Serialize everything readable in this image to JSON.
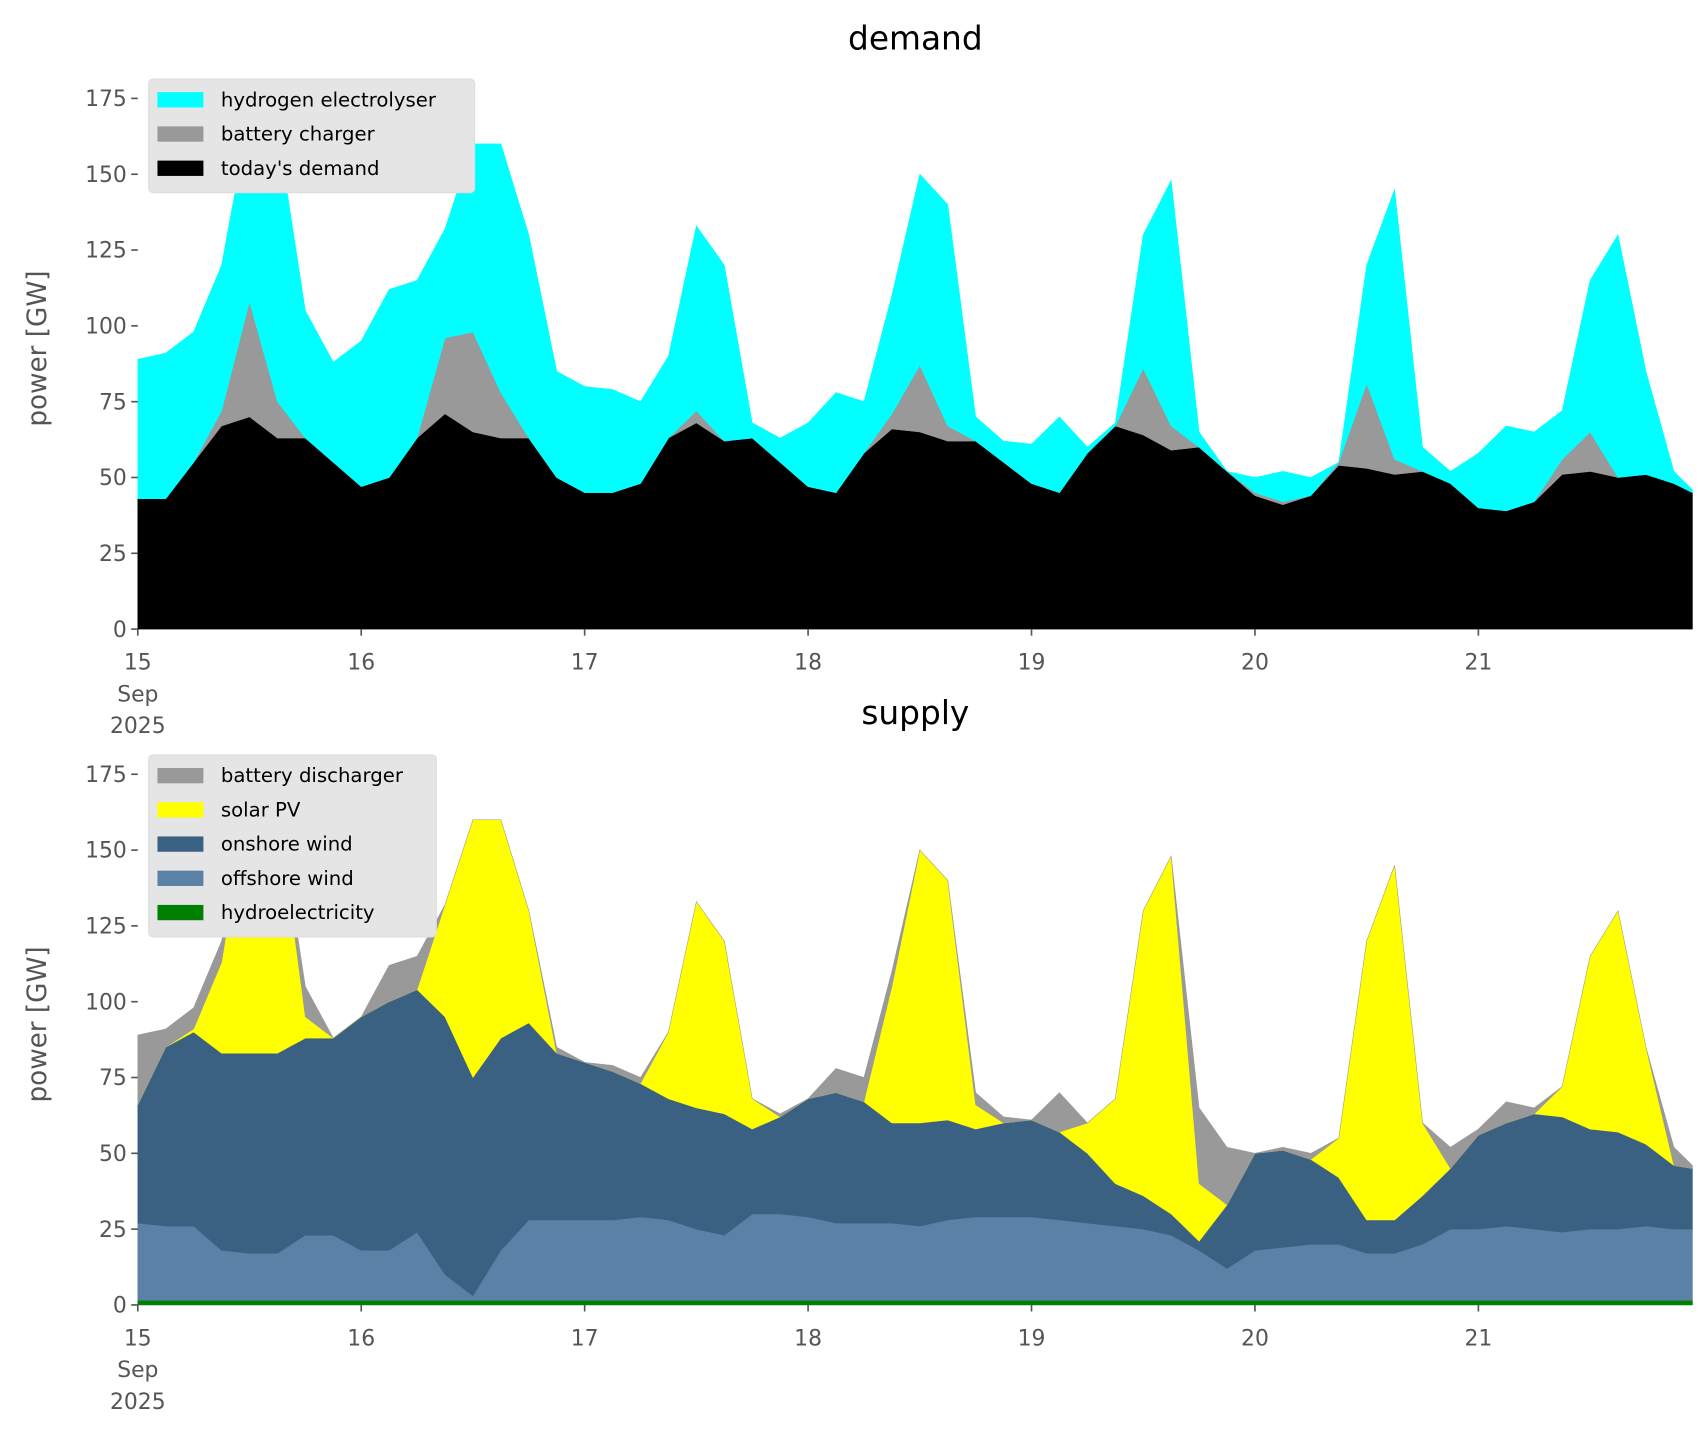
{
  "chart_data": [
    {
      "type": "stacked_area",
      "title": "demand",
      "ylabel": "power [GW]",
      "legend": "upper left",
      "x": [
        15,
        15.125,
        15.25,
        15.375,
        15.5,
        15.625,
        15.75,
        15.875,
        16,
        16.125,
        16.25,
        16.375,
        16.5,
        16.625,
        16.75,
        16.875,
        17,
        17.125,
        17.25,
        17.375,
        17.5,
        17.625,
        17.75,
        17.875,
        18,
        18.125,
        18.25,
        18.375,
        18.5,
        18.625,
        18.75,
        18.875,
        19,
        19.125,
        19.25,
        19.375,
        19.5,
        19.625,
        19.75,
        19.875,
        20,
        20.125,
        20.25,
        20.375,
        20.5,
        20.625,
        20.75,
        20.875,
        21,
        21.125,
        21.25,
        21.375,
        21.5,
        21.625,
        21.75,
        21.875,
        21.958
      ],
      "xlim": [
        15,
        21.96
      ],
      "xticks": [
        {
          "value": 15,
          "label": "15\nSep\n2025"
        },
        16,
        17,
        18,
        19,
        20,
        21
      ],
      "ylim": [
        0,
        185
      ],
      "yticks": [
        0,
        25,
        50,
        75,
        100,
        125,
        150,
        175
      ],
      "series": [
        {
          "name": "today's demand",
          "color": "#000000",
          "values": [
            43,
            43,
            55,
            67,
            70,
            63,
            63,
            55,
            47,
            50,
            63,
            71,
            65,
            63,
            63,
            50,
            45,
            45,
            48,
            63,
            68,
            62,
            63,
            55,
            47,
            45,
            58,
            66,
            65,
            62,
            62,
            55,
            48,
            45,
            58,
            67,
            64,
            59,
            60,
            52,
            44,
            41,
            44,
            54,
            53,
            51,
            52,
            48,
            40,
            39,
            42,
            51,
            52,
            50,
            51,
            48,
            45
          ]
        },
        {
          "name": "battery charger",
          "color": "#999999",
          "values": [
            0,
            0,
            0,
            5,
            38,
            12,
            0,
            0,
            0,
            0,
            0,
            25,
            33,
            15,
            0,
            0,
            0,
            0,
            0,
            0,
            4,
            0,
            0,
            0,
            0,
            0,
            0,
            5,
            22,
            5,
            0,
            0,
            0,
            0,
            0,
            0,
            22,
            8,
            0,
            0,
            1,
            1,
            0,
            1,
            28,
            5,
            0,
            0,
            0,
            0,
            0,
            5,
            13,
            0,
            0,
            0,
            0
          ]
        },
        {
          "name": "hydrogen electrolyser",
          "color": "#00ffff",
          "values": [
            46,
            48,
            43,
            48,
            62,
            90,
            42,
            33,
            48,
            62,
            52,
            36,
            62,
            82,
            67,
            35,
            35,
            34,
            27,
            27,
            61,
            58,
            5,
            8,
            21,
            33,
            17,
            39,
            63,
            73,
            8,
            7,
            13,
            25,
            2,
            1,
            44,
            81,
            5,
            0,
            5,
            10,
            6,
            0,
            39,
            89,
            8,
            4,
            18,
            28,
            23,
            16,
            50,
            80,
            34,
            4,
            1
          ]
        }
      ]
    },
    {
      "type": "stacked_area",
      "title": "supply",
      "ylabel": "power [GW]",
      "legend": "upper left",
      "x": [
        15,
        15.125,
        15.25,
        15.375,
        15.5,
        15.625,
        15.75,
        15.875,
        16,
        16.125,
        16.25,
        16.375,
        16.5,
        16.625,
        16.75,
        16.875,
        17,
        17.125,
        17.25,
        17.375,
        17.5,
        17.625,
        17.75,
        17.875,
        18,
        18.125,
        18.25,
        18.375,
        18.5,
        18.625,
        18.75,
        18.875,
        19,
        19.125,
        19.25,
        19.375,
        19.5,
        19.625,
        19.75,
        19.875,
        20,
        20.125,
        20.25,
        20.375,
        20.5,
        20.625,
        20.75,
        20.875,
        21,
        21.125,
        21.25,
        21.375,
        21.5,
        21.625,
        21.75,
        21.875,
        21.958
      ],
      "xlim": [
        15,
        21.96
      ],
      "xticks": [
        {
          "value": 15,
          "label": "15\nSep\n2025"
        },
        16,
        17,
        18,
        19,
        20,
        21
      ],
      "ylim": [
        0,
        185
      ],
      "yticks": [
        0,
        25,
        50,
        75,
        100,
        125,
        150,
        175
      ],
      "series": [
        {
          "name": "hydroelectricity",
          "color": "#008000",
          "values": [
            1.5,
            1.5,
            1.5,
            1.5,
            1.5,
            1.5,
            1.5,
            1.5,
            1.5,
            1.5,
            1.5,
            1.5,
            1.5,
            1.5,
            1.5,
            1.5,
            1.5,
            1.5,
            1.5,
            1.5,
            1.5,
            1.5,
            1.5,
            1.5,
            1.5,
            1.5,
            1.5,
            1.5,
            1.5,
            1.5,
            1.5,
            1.5,
            1.5,
            1.5,
            1.5,
            1.5,
            1.5,
            1.5,
            1.5,
            1.5,
            1.5,
            1.5,
            1.5,
            1.5,
            1.5,
            1.5,
            1.5,
            1.5,
            1.5,
            1.5,
            1.5,
            1.5,
            1.5,
            1.5,
            1.5,
            1.5,
            1.5
          ]
        },
        {
          "name": "offshore wind",
          "color": "#5b82a6",
          "values": [
            25.5,
            24.5,
            24.5,
            16.5,
            15.5,
            15.5,
            21.5,
            21.5,
            16.5,
            16.5,
            22.5,
            8.5,
            1.5,
            16.5,
            26.5,
            26.5,
            26.5,
            26.5,
            27.5,
            26.5,
            23.5,
            21.5,
            28.5,
            28.5,
            27.5,
            25.5,
            25.5,
            25.5,
            24.5,
            26.5,
            27.5,
            27.5,
            27.5,
            26.5,
            25.5,
            24.5,
            23.5,
            21.5,
            16.5,
            10.5,
            16.5,
            17.5,
            18.5,
            18.5,
            15.5,
            15.5,
            18.5,
            23.5,
            23.5,
            24.5,
            23.5,
            22.5,
            23.5,
            23.5,
            24.5,
            23.5,
            23.5
          ]
        },
        {
          "name": "onshore wind",
          "color": "#3b6182",
          "values": [
            39,
            59,
            64,
            65,
            66,
            66,
            65,
            65,
            77,
            82,
            80,
            85,
            72,
            70,
            65,
            55,
            52,
            49,
            44,
            40,
            40,
            40,
            28,
            32,
            39,
            43,
            40,
            33,
            34,
            33,
            29,
            31,
            32,
            29,
            23,
            14,
            11,
            7,
            3,
            21,
            32,
            32,
            28,
            22,
            11,
            11,
            16,
            20,
            31,
            34,
            38,
            38,
            33,
            32,
            27,
            21,
            20
          ]
        },
        {
          "name": "solar PV",
          "color": "#ffff00",
          "values": [
            0,
            0,
            1,
            30,
            87,
            82,
            7,
            0,
            0,
            0,
            0,
            37,
            85,
            72,
            37,
            0,
            0,
            0,
            0,
            22,
            68,
            57,
            10,
            0,
            0,
            0,
            0,
            45,
            90,
            79,
            8,
            0,
            0,
            0,
            10,
            28,
            94,
            118,
            19,
            0,
            0,
            0,
            0,
            13,
            92,
            117,
            24,
            0,
            0,
            0,
            0,
            10,
            57,
            73,
            32,
            0,
            0
          ]
        },
        {
          "name": "battery discharger",
          "color": "#999999",
          "values": [
            23,
            6,
            7,
            7,
            0,
            0,
            10,
            0,
            0,
            12,
            11,
            0,
            0,
            0,
            0,
            2,
            0,
            2,
            2,
            0,
            0,
            0,
            0,
            1,
            0,
            8,
            8,
            5,
            0,
            0,
            4,
            2,
            0,
            13,
            0,
            0,
            0,
            0,
            25,
            19,
            0,
            1,
            2,
            0,
            0,
            0,
            0,
            7,
            2,
            7,
            2,
            0,
            0,
            0,
            0,
            6,
            1
          ]
        }
      ]
    }
  ]
}
